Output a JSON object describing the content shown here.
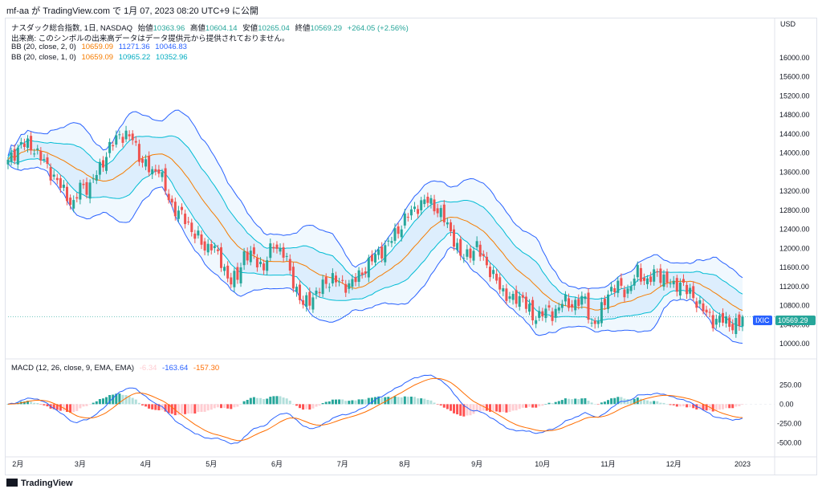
{
  "header": {
    "title": "mf-aa が TradingView.com で 1月 07, 2023 08:20 UTC+9 に公開"
  },
  "legend": {
    "symbol": "ナスダック総合指数, 1日, NASDAQ",
    "open_label": "始値",
    "open": "10363.96",
    "high_label": "高値",
    "high": "10604.14",
    "low_label": "安値",
    "low": "10265.04",
    "close_label": "終値",
    "close": "10569.29",
    "change": "+264.05 (+2.56%)",
    "volume_note": "出来高: このシンボルの出来高データはデータ提供元から提供されておりません。",
    "bb2_label": "BB (20, close, 2, 0)",
    "bb2_basis": "10659.09",
    "bb2_upper": "11271.36",
    "bb2_lower": "10046.83",
    "bb1_label": "BB (20, close, 1, 0)",
    "bb1_basis": "10659.09",
    "bb1_upper": "10965.22",
    "bb1_lower": "10352.96",
    "macd_label": "MACD (12, 26, close, 9, EMA, EMA)",
    "macd_hist": "-6.34",
    "macd_line": "-163.64",
    "macd_signal": "-157.30"
  },
  "price_axis": {
    "currency": "USD",
    "ticks": [
      16000,
      15600,
      15200,
      14800,
      14400,
      14000,
      13600,
      13200,
      12800,
      12400,
      12000,
      11600,
      11200,
      10800,
      10400,
      10000
    ]
  },
  "price_tag": {
    "symbol": "IXIC",
    "value": "10569.29"
  },
  "macd_axis": {
    "ticks": [
      250,
      0,
      -250,
      -500
    ]
  },
  "time_axis": {
    "labels": [
      "2月",
      "3月",
      "4月",
      "5月",
      "6月",
      "7月",
      "8月",
      "9月",
      "10月",
      "11月",
      "12月",
      "2023"
    ],
    "label_bar_index": [
      3,
      22,
      42,
      62,
      82,
      102,
      121,
      143,
      163,
      183,
      203,
      224
    ]
  },
  "colors": {
    "up": "#26a69a",
    "down": "#ef5350",
    "bb2": "#2962ff",
    "bb1": "#00bcd4",
    "basis": "#f57c00",
    "macd": "#2962ff",
    "signal": "#ff6d00",
    "hist_up": "#26a69a",
    "hist_down": "#ff5252",
    "fill": "#e3f2fd"
  },
  "footer": {
    "brand": "TradingView"
  },
  "chart_data": {
    "type": "candlestick",
    "title": "ナスダック総合指数, 1日, NASDAQ",
    "ylim": [
      9800,
      16400
    ],
    "close_waypoints": [
      [
        0,
        13800
      ],
      [
        4,
        14200
      ],
      [
        8,
        14100
      ],
      [
        12,
        13700
      ],
      [
        15,
        13400
      ],
      [
        18,
        13100
      ],
      [
        20,
        12900
      ],
      [
        22,
        13300
      ],
      [
        25,
        13300
      ],
      [
        28,
        13700
      ],
      [
        31,
        14100
      ],
      [
        34,
        14400
      ],
      [
        38,
        14300
      ],
      [
        41,
        13800
      ],
      [
        44,
        13600
      ],
      [
        46,
        13700
      ],
      [
        48,
        13200
      ],
      [
        50,
        12900
      ],
      [
        54,
        12600
      ],
      [
        57,
        12300
      ],
      [
        60,
        12000
      ],
      [
        62,
        12100
      ],
      [
        65,
        11700
      ],
      [
        68,
        11300
      ],
      [
        70,
        11400
      ],
      [
        72,
        11900
      ],
      [
        75,
        11800
      ],
      [
        78,
        11600
      ],
      [
        81,
        12100
      ],
      [
        84,
        11900
      ],
      [
        87,
        11300
      ],
      [
        90,
        10800
      ],
      [
        93,
        11000
      ],
      [
        96,
        11200
      ],
      [
        99,
        11400
      ],
      [
        102,
        11200
      ],
      [
        105,
        11300
      ],
      [
        107,
        11400
      ],
      [
        110,
        11700
      ],
      [
        113,
        11900
      ],
      [
        116,
        12100
      ],
      [
        119,
        12400
      ],
      [
        122,
        12700
      ],
      [
        125,
        12900
      ],
      [
        128,
        13000
      ],
      [
        130,
        12900
      ],
      [
        132,
        12700
      ],
      [
        134,
        12500
      ],
      [
        136,
        12200
      ],
      [
        138,
        11800
      ],
      [
        140,
        11900
      ],
      [
        143,
        12000
      ],
      [
        145,
        11800
      ],
      [
        148,
        11400
      ],
      [
        151,
        11100
      ],
      [
        154,
        10900
      ],
      [
        157,
        11000
      ],
      [
        160,
        10500
      ],
      [
        163,
        10700
      ],
      [
        166,
        10600
      ],
      [
        169,
        10900
      ],
      [
        171,
        10800
      ],
      [
        174,
        10900
      ],
      [
        176,
        10900
      ],
      [
        178,
        10400
      ],
      [
        180,
        10500
      ],
      [
        183,
        11100
      ],
      [
        186,
        11200
      ],
      [
        189,
        11100
      ],
      [
        192,
        11500
      ],
      [
        195,
        11300
      ],
      [
        198,
        11500
      ],
      [
        201,
        11300
      ],
      [
        203,
        11200
      ],
      [
        205,
        11300
      ],
      [
        207,
        11100
      ],
      [
        209,
        11000
      ],
      [
        212,
        10700
      ],
      [
        215,
        10500
      ],
      [
        218,
        10500
      ],
      [
        221,
        10400
      ],
      [
        223,
        10400
      ],
      [
        224,
        10569
      ]
    ],
    "bollinger_20_2": {
      "basis": 10659.09,
      "upper": 11271.36,
      "lower": 10046.83
    },
    "bollinger_20_1": {
      "basis": 10659.09,
      "upper": 10965.22,
      "lower": 10352.96
    },
    "macd_ylim": [
      -650,
      450
    ],
    "macd_last": {
      "histogram": -6.34,
      "macd": -163.64,
      "signal": -157.3
    }
  }
}
